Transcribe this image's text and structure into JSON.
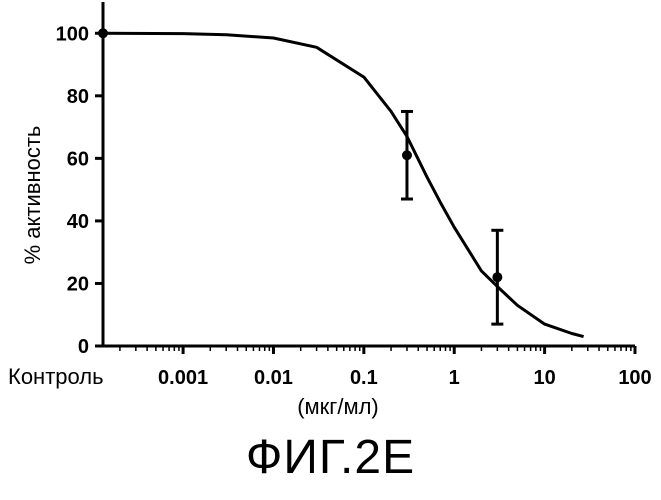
{
  "figure_caption": "ФИГ.2Е",
  "chart_data": {
    "type": "line",
    "title": "",
    "xlabel": "(мкг/мл)",
    "ylabel": "% активность",
    "x_scale": "log",
    "x_control_label": "Контроль",
    "x_tick_values": [
      0.001,
      0.01,
      0.1,
      1,
      10,
      100
    ],
    "x_tick_labels": [
      "0.001",
      "0.01",
      "0.1",
      "1",
      "10",
      "100"
    ],
    "y_tick_values": [
      0,
      20,
      40,
      60,
      80,
      100
    ],
    "y_tick_labels": [
      "0",
      "20",
      "40",
      "60",
      "80",
      "100"
    ],
    "xlim": [
      0.00013,
      100
    ],
    "ylim": [
      0,
      110
    ],
    "grid": false,
    "legend": "none",
    "series": [
      {
        "kind": "points",
        "points": [
          {
            "x": "Контроль",
            "y": 100,
            "err_low": 100,
            "err_high": 100
          },
          {
            "x": 0.3,
            "y": 61,
            "err_low": 47,
            "err_high": 75
          },
          {
            "x": 3,
            "y": 22,
            "err_low": 7,
            "err_high": 37
          }
        ]
      },
      {
        "kind": "fitted-curve",
        "x": [
          0.00013,
          0.001,
          0.003,
          0.01,
          0.03,
          0.1,
          0.2,
          0.3,
          0.5,
          0.7,
          1,
          2,
          3,
          5,
          10,
          20,
          27
        ],
        "y": [
          100,
          99.9,
          99.5,
          98.5,
          95.5,
          86,
          75,
          67,
          54,
          46,
          38,
          24,
          19,
          13,
          7,
          4,
          3
        ]
      }
    ]
  }
}
